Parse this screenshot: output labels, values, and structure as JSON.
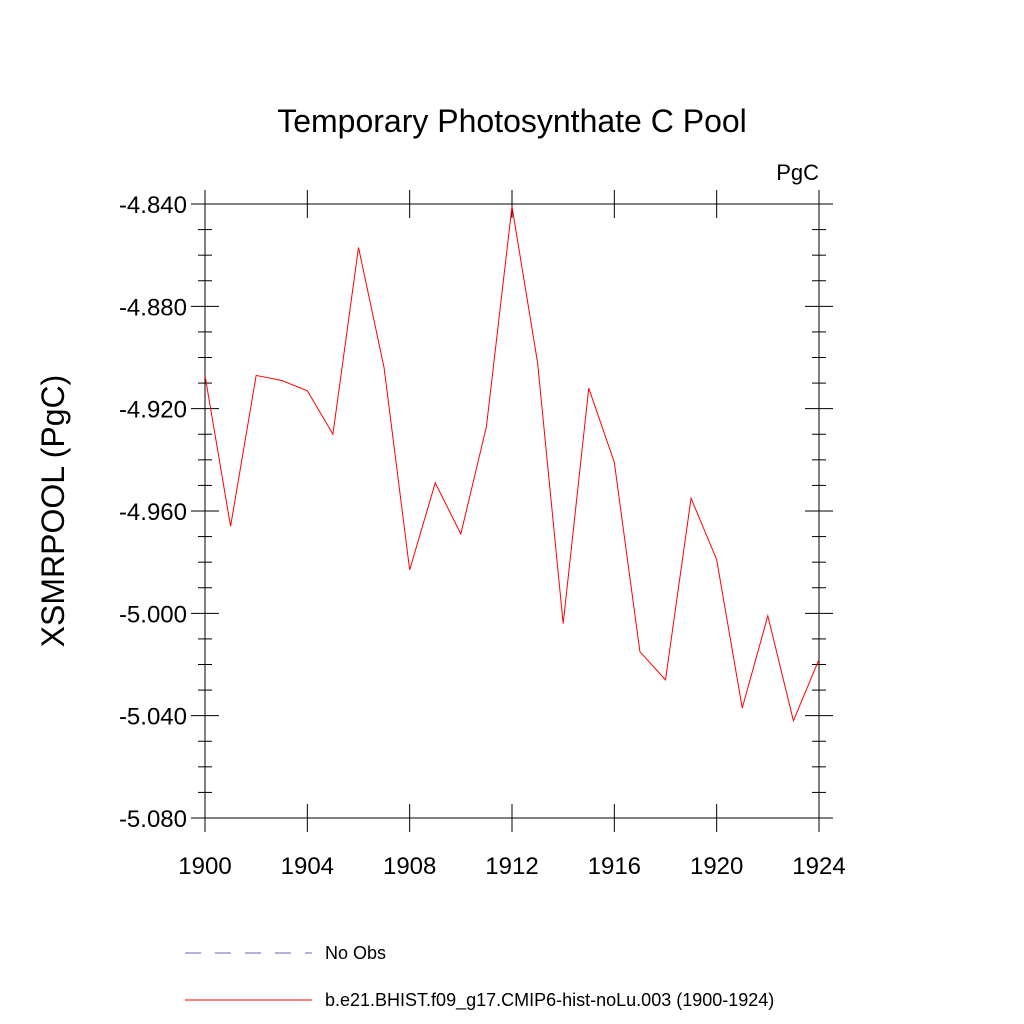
{
  "chart_data": {
    "type": "line",
    "title": "Temporary Photosynthate C Pool",
    "units_label": "PgC",
    "xlabel": "",
    "ylabel": "XSMRPOOL  (PgC)",
    "xlim": [
      1900,
      1924
    ],
    "ylim": [
      -5.08,
      -4.84
    ],
    "x_ticks": [
      1900,
      1904,
      1908,
      1912,
      1916,
      1920,
      1924
    ],
    "x_tick_labels": [
      "1900",
      "1904",
      "1908",
      "1912",
      "1916",
      "1920",
      "1924"
    ],
    "y_ticks": [
      -4.84,
      -4.88,
      -4.92,
      -4.96,
      -5.0,
      -5.04,
      -5.08
    ],
    "y_tick_labels": [
      "-4.840",
      "-4.880",
      "-4.920",
      "-4.960",
      "-5.000",
      "-5.040",
      "-5.080"
    ],
    "grid": false,
    "legend_position": "bottom",
    "series": [
      {
        "name": "b.e21.BHIST.f09_g17.CMIP6-hist-noLu.003 (1900-1924)",
        "color": "#ff0000",
        "style": "solid",
        "x": [
          1900,
          1901,
          1902,
          1903,
          1904,
          1905,
          1906,
          1907,
          1908,
          1909,
          1910,
          1911,
          1912,
          1913,
          1914,
          1915,
          1916,
          1917,
          1918,
          1919,
          1920,
          1921,
          1922,
          1923,
          1924
        ],
        "values": [
          -4.907,
          -4.966,
          -4.907,
          -4.909,
          -4.913,
          -4.93,
          -4.857,
          -4.904,
          -4.983,
          -4.949,
          -4.969,
          -4.927,
          -4.841,
          -4.902,
          -5.004,
          -4.912,
          -4.941,
          -5.015,
          -5.026,
          -4.955,
          -4.979,
          -5.037,
          -5.001,
          -5.042,
          -5.018
        ]
      }
    ],
    "legend": [
      {
        "label": "No Obs",
        "color": "#6666bb",
        "style": "dashed"
      },
      {
        "label": "b.e21.BHIST.f09_g17.CMIP6-hist-noLu.003 (1900-1924)",
        "color": "#ff0000",
        "style": "solid"
      }
    ]
  }
}
